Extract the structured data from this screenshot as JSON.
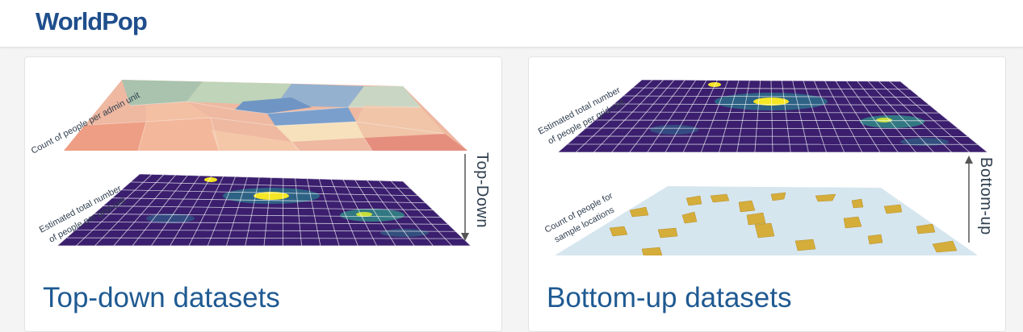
{
  "header": {
    "logo_text": "WorldPop"
  },
  "cards": [
    {
      "title": "Top-down datasets",
      "top_layer_label": "Count of people per admin unit",
      "bottom_layer_label_line1": "Estimated total number",
      "bottom_layer_label_line2": "of people per grid-cell",
      "arrow_label": "Top-Down"
    },
    {
      "title": "Bottom-up datasets",
      "top_layer_label_line1": "Estimated total number",
      "top_layer_label_line2": "of people per grid-cell",
      "bottom_layer_label_line1": "Count of people for",
      "bottom_layer_label_line2": "sample locations",
      "arrow_label": "Bottom-up"
    }
  ],
  "colors": {
    "brand": "#1f4e8c",
    "title": "#1f5a92",
    "grid_base": "#3b1f6e",
    "grid_hot": "#f5e626",
    "sample_fill": "#d4ad3a",
    "sample_bg": "#d6e6ef"
  }
}
